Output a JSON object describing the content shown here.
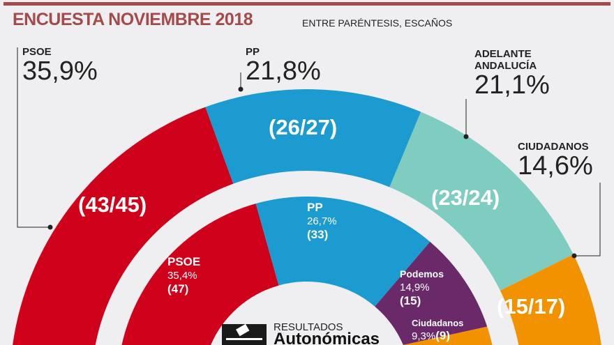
{
  "header": {
    "title": "ENCUESTA NOVIEMBRE 2018",
    "subtitle": "ENTRE PARÉNTESIS, ESCAÑOS"
  },
  "chart_data": [
    {
      "type": "pie",
      "name": "Encuesta noviembre 2018",
      "series": [
        {
          "name": "PSOE",
          "percent": 35.9,
          "percent_label": "35,9%",
          "seats": "(43/45)",
          "color": "#d0021b"
        },
        {
          "name": "PP",
          "percent": 21.8,
          "percent_label": "21,8%",
          "seats": "(26/27)",
          "color": "#1b9bd0"
        },
        {
          "name": "ADELANTE ANDALUCÍA",
          "percent": 21.1,
          "percent_label": "21,1%",
          "seats": "(23/24)",
          "color": "#7fcdc0"
        },
        {
          "name": "CIUDADANOS",
          "percent": 14.6,
          "percent_label": "14,6%",
          "seats": "(15/17)",
          "color": "#f39200"
        }
      ]
    },
    {
      "type": "pie",
      "name": "Resultados autonómicos",
      "series": [
        {
          "name": "PSOE",
          "percent": 35.4,
          "percent_label": "35,4%",
          "seats": "(47)",
          "color": "#d0021b"
        },
        {
          "name": "PP",
          "percent": 26.7,
          "percent_label": "26,7%",
          "seats": "(33)",
          "color": "#1b9bd0"
        },
        {
          "name": "Podemos",
          "percent": 14.9,
          "percent_label": "14,9%",
          "seats": "(15)",
          "color": "#6a2a6a"
        },
        {
          "name": "Ciudadanos",
          "percent": 9.3,
          "percent_label": "9,3%",
          "seats": "(9)",
          "color": "#f39200"
        }
      ]
    }
  ],
  "footer": {
    "resultados": "RESULTADOS",
    "autonomicas": "Autonómicas"
  }
}
